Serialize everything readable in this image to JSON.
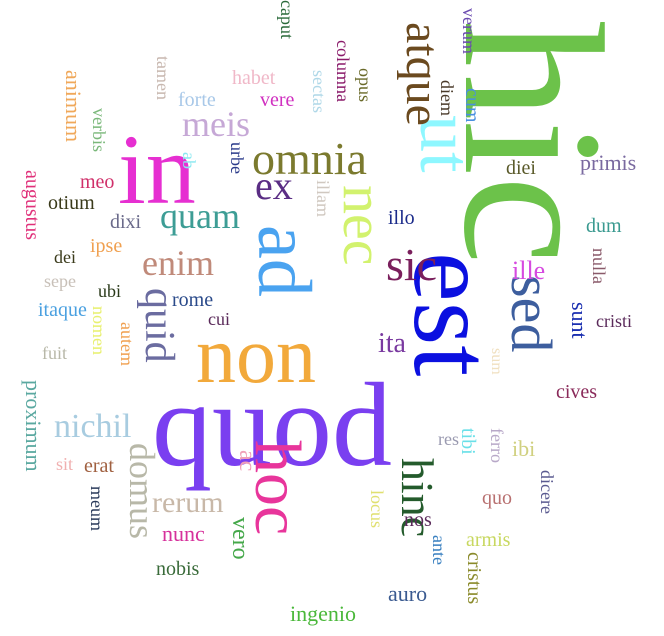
{
  "words": [
    {
      "text": "hic",
      "color": "#6cc24a"
    },
    {
      "text": "est",
      "color": "#0b10e0"
    },
    {
      "text": "quod",
      "color": "#7a3ff0"
    },
    {
      "text": "non",
      "color": "#f2a93b"
    },
    {
      "text": "in",
      "color": "#e62fd1"
    },
    {
      "text": "ad",
      "color": "#4aa3f0"
    },
    {
      "text": "hoc",
      "color": "#e8359b"
    },
    {
      "text": "ut",
      "color": "#8ef7ff"
    },
    {
      "text": "nec",
      "color": "#d2f26e"
    },
    {
      "text": "sed",
      "color": "#3d5e9e"
    },
    {
      "text": "omnia",
      "color": "#7b7a2e"
    },
    {
      "text": "atque",
      "color": "#6b4a1f"
    },
    {
      "text": "hinc",
      "color": "#245b2c"
    },
    {
      "text": "quid",
      "color": "#6b6ca0"
    },
    {
      "text": "sic",
      "color": "#7a1f5c"
    },
    {
      "text": "ex",
      "color": "#5a2d84"
    },
    {
      "text": "quam",
      "color": "#3d9d95"
    },
    {
      "text": "meis",
      "color": "#c6a8d6"
    },
    {
      "text": "enim",
      "color": "#c08a7a"
    },
    {
      "text": "domus",
      "color": "#b8b8a8"
    },
    {
      "text": "nichil",
      "color": "#a8cce0"
    },
    {
      "text": "rerum",
      "color": "#c8b8a8"
    },
    {
      "text": "sunt",
      "color": "#1a2fb0"
    },
    {
      "text": "ille",
      "color": "#d64ae0"
    },
    {
      "text": "ita",
      "color": "#7a3aa0"
    },
    {
      "text": "proximum",
      "color": "#5aa8a0"
    },
    {
      "text": "augustus",
      "color": "#e0307a"
    },
    {
      "text": "animum",
      "color": "#f0a85a"
    },
    {
      "text": "vero",
      "color": "#45a84a"
    },
    {
      "text": "ac",
      "color": "#f0a0b8"
    },
    {
      "text": "nobis",
      "color": "#3a6b3a"
    },
    {
      "text": "nunc",
      "color": "#d6309b"
    },
    {
      "text": "ingenio",
      "color": "#4ab83a"
    },
    {
      "text": "auro",
      "color": "#3a5a90"
    },
    {
      "text": "cristus",
      "color": "#8a8a2a"
    },
    {
      "text": "armis",
      "color": "#c8d860"
    },
    {
      "text": "nos",
      "color": "#5a2a5a"
    },
    {
      "text": "ante",
      "color": "#3a80c0"
    },
    {
      "text": "quo",
      "color": "#b87070"
    },
    {
      "text": "dicere",
      "color": "#5a5a90"
    },
    {
      "text": "ibi",
      "color": "#d0d080"
    },
    {
      "text": "ferro",
      "color": "#b8a8c8"
    },
    {
      "text": "tibi",
      "color": "#6ae0e8"
    },
    {
      "text": "res",
      "color": "#9a9ab0"
    },
    {
      "text": "locus",
      "color": "#e0e070"
    },
    {
      "text": "cives",
      "color": "#8a2a5a"
    },
    {
      "text": "cristi",
      "color": "#5a2a5a"
    },
    {
      "text": "nulla",
      "color": "#8a5a6a"
    },
    {
      "text": "dum",
      "color": "#3a9a90"
    },
    {
      "text": "primis",
      "color": "#7a6aa0"
    },
    {
      "text": "diei",
      "color": "#5a5a2a"
    },
    {
      "text": "illo",
      "color": "#1a2a8a"
    },
    {
      "text": "illam",
      "color": "#d0c8c0"
    },
    {
      "text": "diem",
      "color": "#4a3a2a"
    },
    {
      "text": "cum",
      "color": "#4a90e0"
    },
    {
      "text": "verum",
      "color": "#6a4ab0"
    },
    {
      "text": "opus",
      "color": "#6a6a2a"
    },
    {
      "text": "columna",
      "color": "#8a1a6a"
    },
    {
      "text": "sectas",
      "color": "#b0d8e8"
    },
    {
      "text": "caput",
      "color": "#2a6a3a"
    },
    {
      "text": "habet",
      "color": "#f0b8c8"
    },
    {
      "text": "vere",
      "color": "#d030c0"
    },
    {
      "text": "forte",
      "color": "#a8c8e8"
    },
    {
      "text": "tamen",
      "color": "#c8b8b0"
    },
    {
      "text": "urbe",
      "color": "#2a3a8a"
    },
    {
      "text": "ab",
      "color": "#8ae8f0"
    },
    {
      "text": "verbis",
      "color": "#7ab87a"
    },
    {
      "text": "meo",
      "color": "#d0306a"
    },
    {
      "text": "otium",
      "color": "#3a3a1a"
    },
    {
      "text": "dixi",
      "color": "#6a6a8a"
    },
    {
      "text": "ipse",
      "color": "#f0a050"
    },
    {
      "text": "dei",
      "color": "#3a3a1a"
    },
    {
      "text": "sepe",
      "color": "#c8c0b8"
    },
    {
      "text": "ubi",
      "color": "#2a3a1a"
    },
    {
      "text": "itaque",
      "color": "#4aa0e0"
    },
    {
      "text": "rome",
      "color": "#2a4a8a"
    },
    {
      "text": "cui",
      "color": "#5a2a5a"
    },
    {
      "text": "nomen",
      "color": "#e8f070"
    },
    {
      "text": "autem",
      "color": "#f0a050"
    },
    {
      "text": "fuit",
      "color": "#b8b8a8"
    },
    {
      "text": "sit",
      "color": "#f0b0b0"
    },
    {
      "text": "erat",
      "color": "#a06040"
    },
    {
      "text": "meum",
      "color": "#2a3a5a"
    },
    {
      "text": "sum",
      "color": "#f0e0c0"
    }
  ]
}
